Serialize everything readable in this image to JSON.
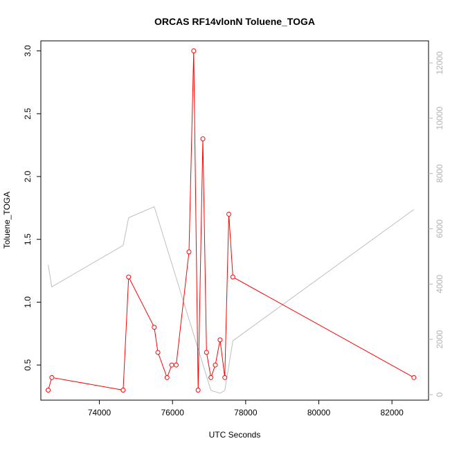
{
  "chart_data": {
    "type": "line",
    "title": "ORCAS RF14vlonN Toluene_TOGA",
    "xlabel": "UTC Seconds",
    "ylabel": "Toluene_TOGA",
    "xlim": [
      72400,
      83000
    ],
    "ylim": [
      0.22,
      3.08
    ],
    "y2lim": [
      -200,
      12800
    ],
    "x_ticks": [
      74000,
      76000,
      78000,
      80000,
      82000
    ],
    "y_ticks": [
      0.5,
      1.0,
      1.5,
      2.0,
      2.5,
      3.0
    ],
    "y2_ticks": [
      0,
      2000,
      4000,
      6000,
      8000,
      10000,
      12000
    ],
    "x_tick_labels": [
      "74000",
      "76000",
      "78000",
      "80000",
      "82000"
    ],
    "y_tick_labels": [
      "0.5",
      "1.0",
      "1.5",
      "2.0",
      "2.5",
      "3.0"
    ],
    "y2_tick_labels": [
      "0",
      "2000",
      "4000",
      "6000",
      "8000",
      "10000",
      "12000"
    ],
    "colors": {
      "primary": "#ff0000",
      "secondary": "#bebebe",
      "right_axis": "#b3b3b3"
    },
    "series": [
      {
        "axis": "left",
        "style": "line-with-open-circles",
        "color": "#ff0000",
        "x": [
          72600,
          72700,
          74650,
          74800,
          75500,
          75600,
          75850,
          75980,
          76100,
          76450,
          76580,
          76700,
          76830,
          76930,
          77050,
          77170,
          77300,
          77430,
          77540,
          77650,
          82600
        ],
        "y": [
          0.3,
          0.4,
          0.3,
          1.2,
          0.8,
          0.6,
          0.4,
          0.5,
          0.5,
          1.4,
          3.0,
          0.3,
          2.3,
          0.6,
          0.4,
          0.5,
          0.7,
          0.4,
          1.7,
          1.2,
          0.4
        ]
      },
      {
        "axis": "right",
        "style": "line",
        "color": "#bebebe",
        "x": [
          72600,
          72700,
          74650,
          74800,
          75500,
          77050,
          77300,
          77430,
          77650,
          82600
        ],
        "y": [
          4700,
          3900,
          5400,
          6400,
          6800,
          150,
          50,
          150,
          1950,
          6700
        ]
      }
    ]
  }
}
